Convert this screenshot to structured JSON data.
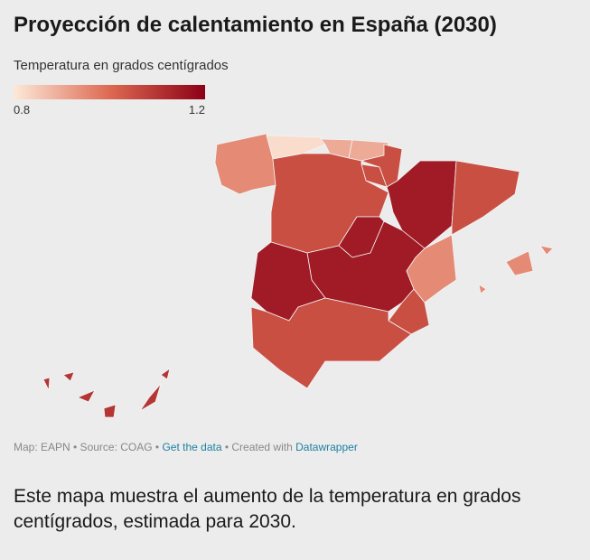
{
  "header": {
    "title": "Proyección de calentamiento en España (2030)",
    "subtitle": "Temperatura en grados centígrados"
  },
  "legend": {
    "min": 0.8,
    "max": 1.2
  },
  "regions": [
    {
      "value": 0.95
    },
    {
      "value": 0.82
    },
    {
      "value": 0.9
    },
    {
      "value": 0.9
    },
    {
      "value": 1.05
    },
    {
      "value": 1.05
    },
    {
      "value": 1.05
    },
    {
      "value": 1.15
    },
    {
      "value": 1.05
    },
    {
      "value": 1.15
    },
    {
      "value": 1.15
    },
    {
      "value": 1.15
    },
    {
      "value": 0.95
    },
    {
      "value": 1.05
    },
    {
      "value": 1.05
    },
    {
      "value": 0.95
    },
    {
      "value": 1.1
    }
  ],
  "footer": {
    "source": "Map: EAPN • Source: COAG •",
    "data_link": "Get the data",
    "created": "• Created with",
    "tool_link": "Datawrapper"
  },
  "description": "Este mapa muestra el aumento de la temperatura en grados centígrados, estimada para 2030."
}
